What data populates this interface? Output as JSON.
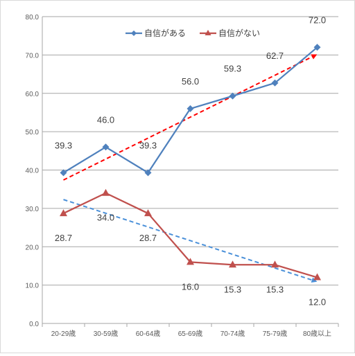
{
  "chart_data": {
    "type": "line",
    "title": "",
    "xlabel": "",
    "ylabel": "",
    "categories": [
      "20-29歳",
      "30-59歳",
      "60-64歳",
      "65-69歳",
      "70-74歳",
      "75-79歳",
      "80歳以上"
    ],
    "ylim": [
      0,
      80
    ],
    "y_ticks": [
      "0.0",
      "10.0",
      "20.0",
      "30.0",
      "40.0",
      "50.0",
      "60.0",
      "70.0",
      "80.0"
    ],
    "grid": true,
    "legend_position": "top-center",
    "series": [
      {
        "name": "自信がある",
        "color": "#4F81BD",
        "marker": "diamond",
        "values": [
          39.3,
          46.0,
          39.3,
          56.0,
          59.3,
          62.7,
          72.0
        ],
        "labels": [
          "39.3",
          "46.0",
          "39.3",
          "56.0",
          "59.3",
          "62.7",
          "72.0"
        ]
      },
      {
        "name": "自信がない",
        "color": "#C0504D",
        "marker": "triangle",
        "values": [
          28.7,
          34.0,
          28.7,
          16.0,
          15.3,
          15.3,
          12.0
        ],
        "labels": [
          "28.7",
          "34.0",
          "28.7",
          "16.0",
          "15.3",
          "15.3",
          "12.0"
        ]
      }
    ],
    "trendlines": [
      {
        "series": "自信がある",
        "color": "#FF0000",
        "style": "dashed-arrow",
        "start": 37.4,
        "end": 70.0
      },
      {
        "series": "自信がない",
        "color": "#4A90D9",
        "style": "dashed-arrow",
        "start": 32.3,
        "end": 11.0
      }
    ]
  }
}
